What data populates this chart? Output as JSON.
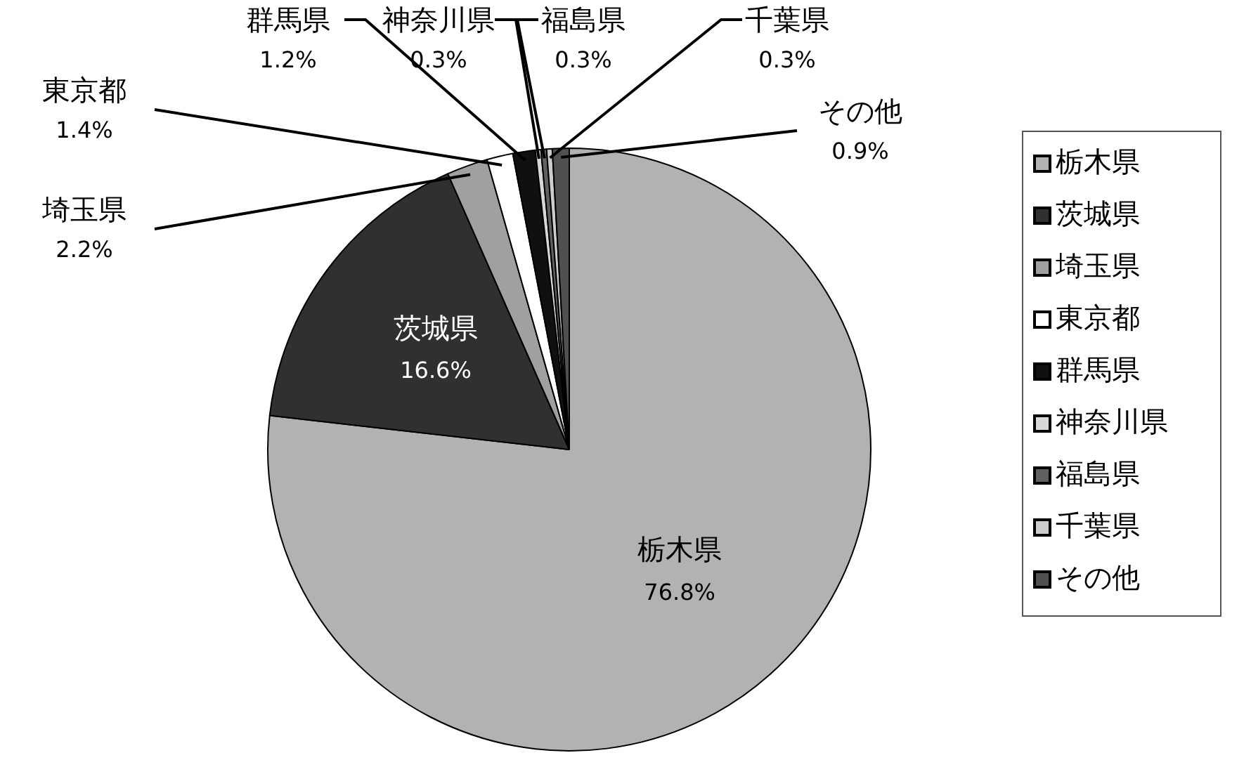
{
  "chart_data": {
    "type": "pie",
    "categories": [
      "栃木県",
      "茨城県",
      "埼玉県",
      "東京都",
      "群馬県",
      "神奈川県",
      "福島県",
      "千葉県",
      "その他"
    ],
    "values": [
      76.8,
      16.6,
      2.2,
      1.4,
      1.2,
      0.3,
      0.3,
      0.3,
      0.9
    ],
    "value_labels": [
      "76.8%",
      "16.6%",
      "2.2%",
      "1.4%",
      "1.2%",
      "0.3%",
      "0.3%",
      "0.3%",
      "0.9%"
    ],
    "colors": [
      "#b2b2b2",
      "#303030",
      "#a0a0a0",
      "#ffffff",
      "#101010",
      "#d8d8d8",
      "#606060",
      "#cccccc",
      "#505050"
    ],
    "legend": "right"
  }
}
